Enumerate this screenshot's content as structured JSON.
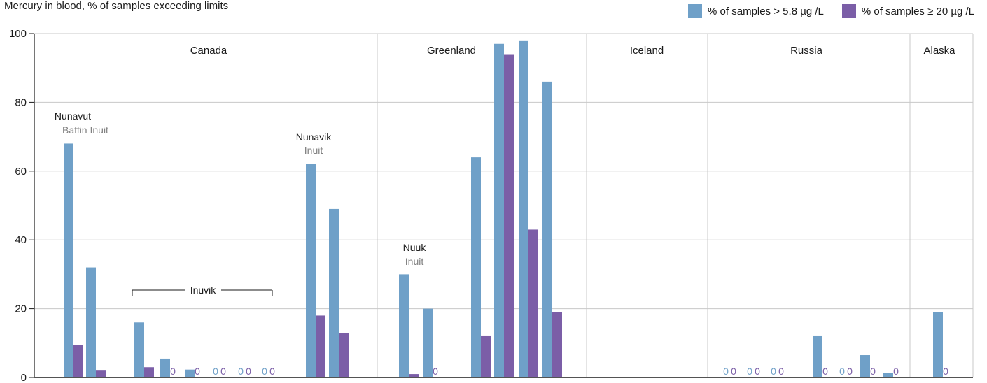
{
  "chart_data": {
    "type": "bar",
    "title": "Mercury in blood, % of samples exceeding limits",
    "ylim": [
      0,
      100
    ],
    "yticks": [
      0,
      20,
      40,
      60,
      80,
      100
    ],
    "grid": true,
    "legend_position": "top-right",
    "colors": {
      "s1": "#6fa0c8",
      "s2": "#7b5ea7",
      "grid": "#c8c8c8",
      "zero_blue": "#6fa0c8",
      "zero_purple": "#7b5ea7"
    },
    "series": [
      {
        "name": "% of samples > 5.8 µg /L"
      },
      {
        "name": "% of samples  ≥ 20 µg /L"
      }
    ],
    "regions": [
      "Canada",
      "Greenland",
      "Iceland",
      "Russia",
      "Alaska"
    ],
    "groups": [
      {
        "v1": 68,
        "v2": 9.5
      },
      {
        "v1": 32,
        "v2": 2
      },
      {
        "v1": 16,
        "v2": 3
      },
      {
        "v1": 5.5,
        "v2": 0
      },
      {
        "v1": 2.3,
        "v2": 0
      },
      {
        "v1": 0,
        "v2": 0
      },
      {
        "v1": 0,
        "v2": 0
      },
      {
        "v1": 0,
        "v2": 0
      },
      {
        "v1": 62,
        "v2": 18
      },
      {
        "v1": 49,
        "v2": 13
      },
      {
        "v1": 30,
        "v2": 1
      },
      {
        "v1": 20,
        "v2": 0
      },
      {
        "v1": 64,
        "v2": 12
      },
      {
        "v1": 97,
        "v2": 94
      },
      {
        "v1": 98,
        "v2": 43
      },
      {
        "v1": 86,
        "v2": 19
      },
      {
        "v1": 0,
        "v2": 0
      },
      {
        "v1": 0,
        "v2": 0
      },
      {
        "v1": 0,
        "v2": 0
      },
      {
        "v1": 12,
        "v2": 0
      },
      {
        "v1": 0,
        "v2": 0
      },
      {
        "v1": 6.5,
        "v2": 0
      },
      {
        "v1": 1.3,
        "v2": 0
      },
      {
        "v1": 19,
        "v2": 0
      }
    ],
    "annotations": [
      {
        "main": "Nunavut",
        "sub": "Baffin Inuit"
      },
      {
        "main": "Nunavik",
        "sub": "Inuit"
      },
      {
        "main": "Nuuk",
        "sub": "Inuit"
      },
      {
        "main": "Inuvik"
      }
    ],
    "zero_label": "0"
  }
}
